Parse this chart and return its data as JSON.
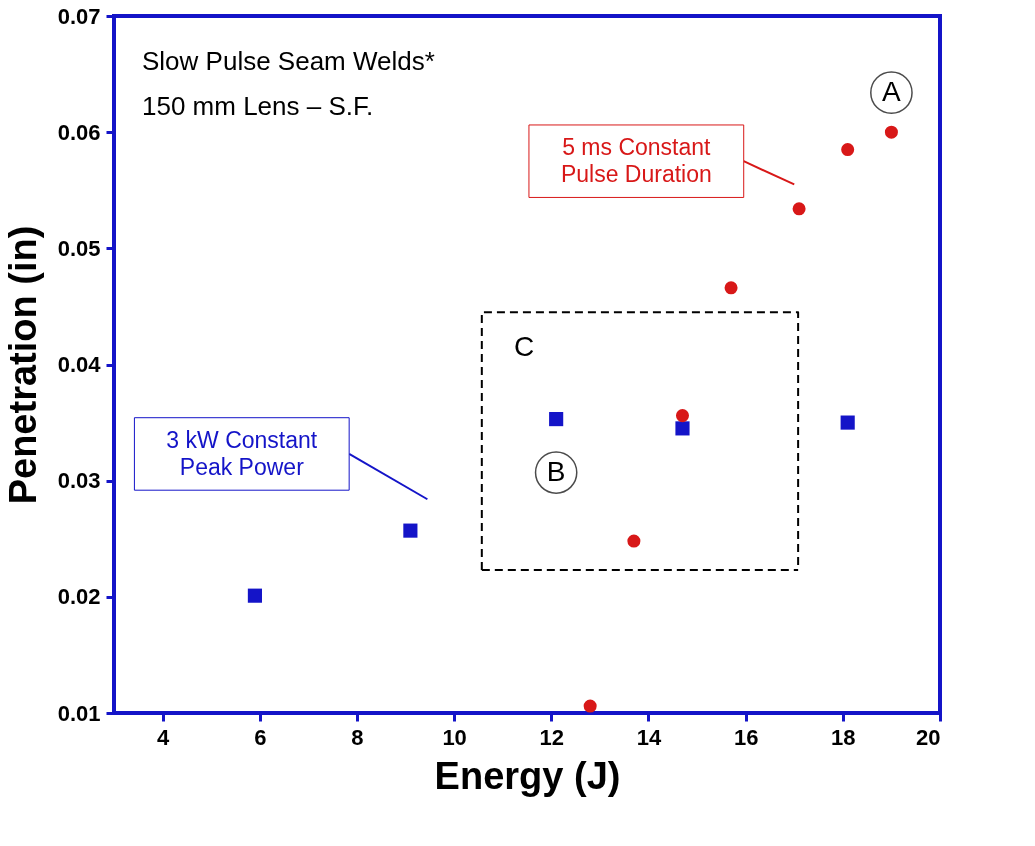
{
  "chart_data": {
    "type": "scatter",
    "xlabel": "Energy (J)",
    "ylabel": "Penetration (in)",
    "xlim": [
      3,
      20
    ],
    "xticks": [
      4,
      6,
      8,
      10,
      12,
      14,
      16,
      18,
      20
    ],
    "ylim": [
      0.01,
      0.07
    ],
    "yticks": [
      0.01,
      0.02,
      0.03,
      0.04,
      0.05,
      0.06,
      0.07
    ],
    "grid": false,
    "series": [
      {
        "color": "#1414c8",
        "marker": "square",
        "x": [
          5.9,
          9.1,
          12.1,
          14.7,
          18.1
        ],
        "values": [
          0.0201,
          0.0257,
          0.0353,
          0.0345,
          0.035
        ]
      },
      {
        "color": "#d81818",
        "marker": "circle",
        "x": [
          12.8,
          13.7,
          14.7,
          15.7,
          17.1,
          18.1,
          19.0
        ],
        "values": [
          0.0106,
          0.0248,
          0.0356,
          0.0466,
          0.0534,
          0.0585,
          0.06
        ]
      },
      {
        "type": "line",
        "color": "#000000",
        "marker": "none",
        "line_style": "dashed",
        "x": [
          10.57,
          10.57,
          17.08,
          17.08
        ],
        "values": [
          0.0223,
          0.0445,
          0.0445,
          0.0223
        ]
      },
      {
        "type": "line",
        "color": "#000000",
        "marker": "none",
        "line_style": "dashed",
        "x": [
          10.57,
          17.08
        ],
        "values": [
          0.0223,
          0.0223
        ]
      },
      {
        "type": "line",
        "color": "#d81818",
        "marker": "none",
        "line_style": "solid",
        "x": [
          15.96,
          17.0
        ],
        "values": [
          0.0575,
          0.0555
        ]
      },
      {
        "type": "line",
        "color": "#1414c8",
        "marker": "none",
        "line_style": "solid",
        "x": [
          7.84,
          9.45
        ],
        "values": [
          0.0323,
          0.0284
        ]
      }
    ],
    "annotations": [
      "Slow Pulse Seam Welds*",
      "150 mm Lens – S.F.",
      {
        "text": "A",
        "x": 19.0,
        "y": 0.0634
      },
      {
        "text": "B",
        "x": 12.1,
        "y": 0.0307
      },
      "C",
      "5 ms Constant\nPulse Duration",
      "3 kW Constant\nPeak Power"
    ]
  }
}
